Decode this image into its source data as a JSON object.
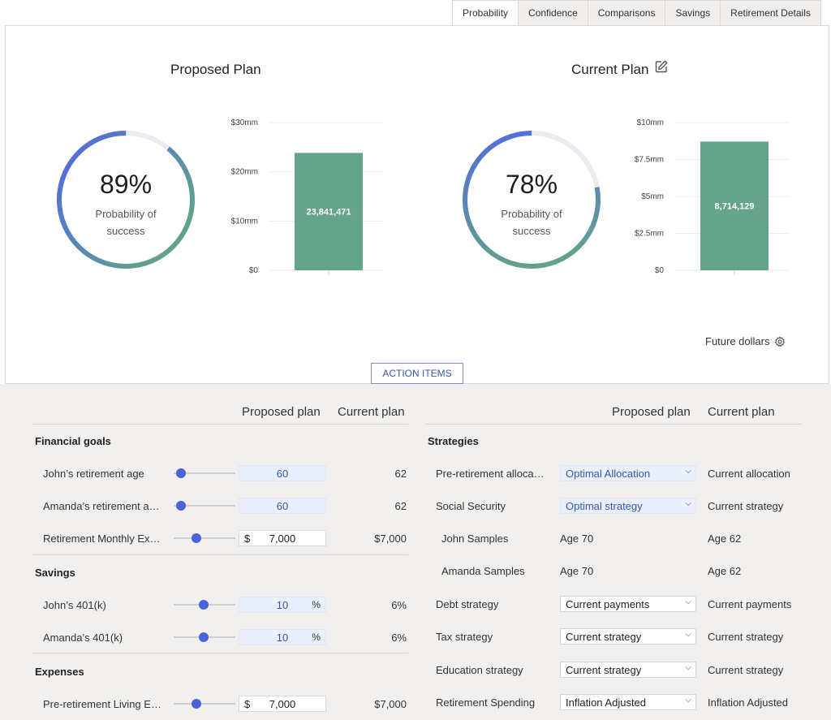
{
  "tabs": [
    "Probability",
    "Confidence",
    "Comparisons",
    "Savings",
    "Retirement Details"
  ],
  "proposed": {
    "title": "Proposed Plan",
    "percent": "89%",
    "prob_label_1": "Probability of",
    "prob_label_2": "success",
    "probability": 0.89
  },
  "current": {
    "title": "Current Plan",
    "percent": "78%",
    "prob_label_1": "Probability of",
    "prob_label_2": "success",
    "probability": 0.78
  },
  "chart_data": [
    {
      "type": "bar",
      "categories": [
        ""
      ],
      "values": [
        23841471
      ],
      "data_labels": [
        "23,841,471"
      ],
      "yticks": [
        "$0",
        "$10mm",
        "$20mm",
        "$30mm"
      ],
      "ylim": [
        0,
        30000000
      ],
      "color": "#65a38b"
    },
    {
      "type": "bar",
      "categories": [
        ""
      ],
      "values": [
        8714129
      ],
      "data_labels": [
        "8,714,129"
      ],
      "yticks": [
        "$0",
        "$2.5mm",
        "$5mm",
        "$7.5mm",
        "$10mm"
      ],
      "ylim": [
        0,
        10000000
      ],
      "color": "#65a38b"
    }
  ],
  "future_dollars": "Future dollars",
  "action_items": "ACTION ITEMS",
  "left_table": {
    "head_proposed": "Proposed plan",
    "head_current": "Current plan",
    "sections": {
      "financial_goals": "Financial goals",
      "savings": "Savings",
      "expenses": "Expenses"
    },
    "rows": [
      {
        "label": "John’s retirement age",
        "value": "60",
        "current": "62",
        "slider": 0.05
      },
      {
        "label": "Amanda’s retirement a…",
        "value": "60",
        "current": "62",
        "slider": 0.05
      },
      {
        "label": "Retirement Monthly Ex…",
        "prefix": "$",
        "value": "7,000",
        "current": "$7,000",
        "slider": 0.35
      },
      {
        "label": "John’s 401(k)",
        "value": "10",
        "suffix": "%",
        "current": "6%",
        "slider": 0.48
      },
      {
        "label": "Amanda’s 401(k)",
        "value": "10",
        "suffix": "%",
        "current": "6%",
        "slider": 0.48
      },
      {
        "label": "Pre-retirement Living E…",
        "prefix": "$",
        "value": "7,000",
        "current": "$7,000",
        "slider": 0.35
      }
    ]
  },
  "right_table": {
    "head_proposed": "Proposed plan",
    "head_current": "Current plan",
    "section": "Strategies",
    "rows": [
      {
        "label": "Pre-retirement alloca…",
        "proposed": "Optimal Allocation",
        "current": "Current allocation"
      },
      {
        "label": "Social Security",
        "proposed": "Optimal strategy",
        "current": "Current strategy"
      },
      {
        "label": "John Samples",
        "proposed": "Age 70",
        "current": "Age 62"
      },
      {
        "label": "Amanda Samples",
        "proposed": "Age 70",
        "current": "Age 62"
      },
      {
        "label": "Debt strategy",
        "proposed": "Current payments",
        "current": "Current payments"
      },
      {
        "label": "Tax strategy",
        "proposed": "Current strategy",
        "current": "Current strategy"
      },
      {
        "label": "Education strategy",
        "proposed": "Current strategy",
        "current": "Current strategy"
      },
      {
        "label": "Retirement Spending",
        "proposed": "Inflation Adjusted",
        "current": "Inflation Adjusted"
      }
    ]
  }
}
